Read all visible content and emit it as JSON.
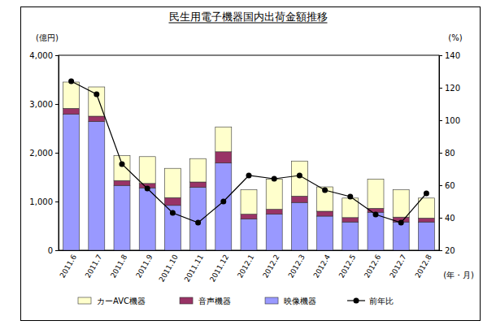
{
  "chart_data": {
    "type": "bar",
    "stacked": true,
    "title": "民生用電子機器国内出荷金額推移",
    "x_label": "(年・月)",
    "y_label": "(億円)",
    "y2_label": "(%)",
    "categories": [
      "2011.6",
      "2011.7",
      "2011.8",
      "2011.9",
      "2011.10",
      "2011.11",
      "2011.12",
      "2012.1",
      "2012.2",
      "2012.3",
      "2012.4",
      "2012.5",
      "2012.6",
      "2012.7",
      "2012.8"
    ],
    "series": [
      {
        "name": "カーAVC機器",
        "type": "bar",
        "color": "#ffffcc",
        "values": [
          540,
          600,
          510,
          550,
          600,
          480,
          510,
          500,
          620,
          720,
          500,
          400,
          600,
          560,
          410
        ]
      },
      {
        "name": "音声機器",
        "type": "bar",
        "color": "#993366",
        "values": [
          120,
          110,
          100,
          90,
          160,
          110,
          230,
          100,
          100,
          130,
          100,
          90,
          80,
          100,
          80
        ]
      },
      {
        "name": "映像機器",
        "type": "bar",
        "color": "#9999ff",
        "values": [
          2790,
          2640,
          1330,
          1280,
          920,
          1290,
          1790,
          640,
          740,
          980,
          700,
          580,
          780,
          580,
          580
        ]
      },
      {
        "name": "前年比",
        "type": "line",
        "axis": "y2",
        "color": "#000000",
        "marker": "circle",
        "line_style": "solid",
        "values": [
          124,
          116,
          73,
          58,
          43,
          37,
          50,
          66,
          64,
          66,
          57,
          53,
          42,
          37,
          55
        ]
      }
    ],
    "ylim": [
      0,
      4000
    ],
    "yticks": [
      0,
      {
        "value": 1000,
        "label": "1,000"
      },
      {
        "value": 2000,
        "label": "2,000"
      },
      {
        "value": 3000,
        "label": "3,000"
      },
      {
        "value": 4000,
        "label": "4,000"
      }
    ],
    "y2lim": [
      20,
      140
    ],
    "y2ticks": [
      20,
      40,
      60,
      80,
      100,
      120,
      140
    ],
    "grid": false,
    "legend": "bottom"
  }
}
